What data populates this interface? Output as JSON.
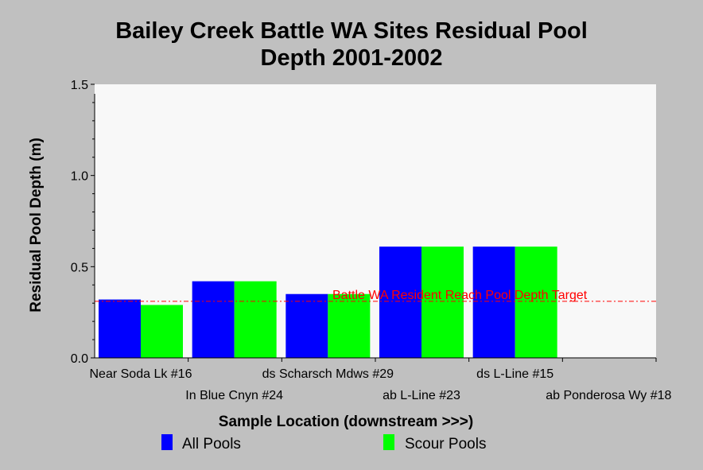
{
  "chart_data": {
    "type": "bar",
    "title_lines": [
      "Bailey Creek Battle WA Sites Residual Pool",
      "Depth 2001-2002"
    ],
    "xlabel": "Sample Location (downstream >>>)",
    "ylabel": "Residual Pool Depth (m)",
    "ylim": [
      0,
      1.5
    ],
    "yticks": [
      "0.0",
      "0.5",
      "1.0",
      "1.5"
    ],
    "categories": [
      "Near Soda Lk #16",
      "In Blue Cnyn #24",
      "ds Scharsch Mdws #29",
      "ab L-Line #23",
      "ds L-Line #15",
      "ab Ponderosa Wy #18"
    ],
    "series": [
      {
        "name": "All Pools",
        "color": "#0000ff",
        "values": [
          0.32,
          0.42,
          0.35,
          0.61,
          0.61,
          null
        ]
      },
      {
        "name": "Scour Pools",
        "color": "#00ff00",
        "values": [
          0.29,
          0.42,
          0.35,
          0.61,
          0.61,
          null
        ]
      }
    ],
    "target_line": {
      "label": "Battle WA Resident Reach Pool Depth Target",
      "value": 0.31,
      "color": "#ff0000"
    },
    "plot_background": "#f8f8f8",
    "grid": false,
    "legend_position": "bottom"
  }
}
